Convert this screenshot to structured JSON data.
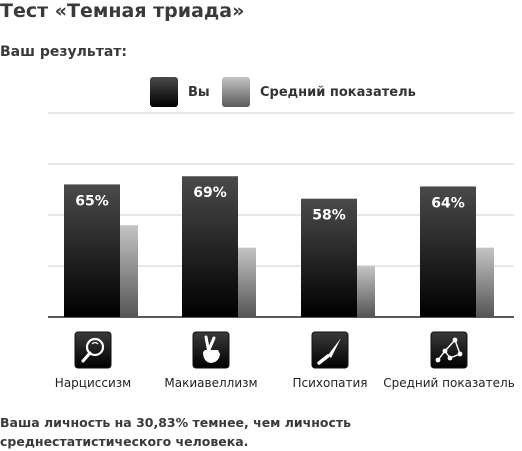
{
  "page": {
    "title": "Тест «Темная триада»",
    "subtitle": "Ваш результат:",
    "footer": "Ваша личность на 30,83% темнее, чем личность среднестатистического человека."
  },
  "legend": {
    "you": "Вы",
    "average": "Средний показатель"
  },
  "icons": [
    "mirror-icon",
    "crossed-fingers-icon",
    "knife-icon",
    "constellation-icon"
  ],
  "colors": {
    "you_top": "#4a4a4a",
    "you_bottom": "#000000",
    "avg_top": "#c4c4c4",
    "avg_bottom": "#555555"
  },
  "chart_data": {
    "type": "bar",
    "categories": [
      "Нарциссизм",
      "Макиавеллизм",
      "Психопатия",
      "Средний показатель"
    ],
    "series": [
      {
        "name": "Вы",
        "values": [
          65,
          69,
          58,
          64
        ],
        "labels": [
          "65%",
          "69%",
          "58%",
          "64%"
        ]
      },
      {
        "name": "Средний показатель",
        "values": [
          45,
          34,
          25,
          34
        ]
      }
    ],
    "ylim": [
      0,
      100
    ],
    "grid": true,
    "legend_position": "top"
  }
}
